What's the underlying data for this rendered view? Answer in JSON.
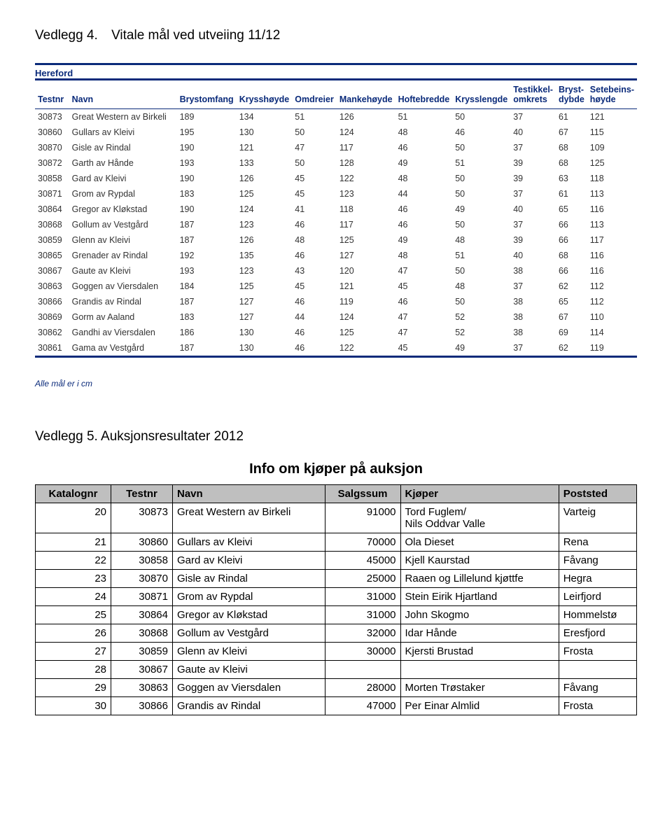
{
  "appendix4": {
    "label": "Vedlegg 4.",
    "title": "Vitale mål ved utveiing 11/12"
  },
  "vitals": {
    "breed": "Hereford",
    "columns": [
      "Testnr",
      "Navn",
      "Brystomfang",
      "Krysshøyde",
      "Omdreier",
      "Mankehøyde",
      "Hoftebredde",
      "Krysslengde",
      "Testikkel-\nomkrets",
      "Bryst-\ndybde",
      "Setebeins-\nhøyde"
    ],
    "rows": [
      {
        "testnr": "30873",
        "navn": "Great Western av Birkeli",
        "v": [
          189,
          134,
          51,
          126,
          51,
          50,
          37,
          61,
          121
        ]
      },
      {
        "testnr": "30860",
        "navn": "Gullars av Kleivi",
        "v": [
          195,
          130,
          50,
          124,
          48,
          46,
          40,
          67,
          115
        ]
      },
      {
        "testnr": "30870",
        "navn": "Gisle av Rindal",
        "v": [
          190,
          121,
          47,
          117,
          46,
          50,
          37,
          68,
          109
        ]
      },
      {
        "testnr": "30872",
        "navn": "Garth av Hånde",
        "v": [
          193,
          133,
          50,
          128,
          49,
          51,
          39,
          68,
          125
        ]
      },
      {
        "testnr": "30858",
        "navn": "Gard av Kleivi",
        "v": [
          190,
          126,
          45,
          122,
          48,
          50,
          39,
          63,
          118
        ]
      },
      {
        "testnr": "30871",
        "navn": "Grom av Rypdal",
        "v": [
          183,
          125,
          45,
          123,
          44,
          50,
          37,
          61,
          113
        ]
      },
      {
        "testnr": "30864",
        "navn": "Gregor av Kløkstad",
        "v": [
          190,
          124,
          41,
          118,
          46,
          49,
          40,
          65,
          116
        ]
      },
      {
        "testnr": "30868",
        "navn": "Gollum av Vestgård",
        "v": [
          187,
          123,
          46,
          117,
          46,
          50,
          37,
          66,
          113
        ]
      },
      {
        "testnr": "30859",
        "navn": "Glenn av Kleivi",
        "v": [
          187,
          126,
          48,
          125,
          49,
          48,
          39,
          66,
          117
        ]
      },
      {
        "testnr": "30865",
        "navn": "Grenader av Rindal",
        "v": [
          192,
          135,
          46,
          127,
          48,
          51,
          40,
          68,
          116
        ]
      },
      {
        "testnr": "30867",
        "navn": "Gaute av Kleivi",
        "v": [
          193,
          123,
          43,
          120,
          47,
          50,
          38,
          66,
          116
        ]
      },
      {
        "testnr": "30863",
        "navn": "Goggen av Viersdalen",
        "v": [
          184,
          125,
          45,
          121,
          45,
          48,
          37,
          62,
          112
        ]
      },
      {
        "testnr": "30866",
        "navn": "Grandis av Rindal",
        "v": [
          187,
          127,
          46,
          119,
          46,
          50,
          38,
          65,
          112
        ]
      },
      {
        "testnr": "30869",
        "navn": "Gorm av Aaland",
        "v": [
          183,
          127,
          44,
          124,
          47,
          52,
          38,
          67,
          110
        ]
      },
      {
        "testnr": "30862",
        "navn": "Gandhi av Viersdalen",
        "v": [
          186,
          130,
          46,
          125,
          47,
          52,
          38,
          69,
          114
        ]
      },
      {
        "testnr": "30861",
        "navn": "Gama av Vestgård",
        "v": [
          187,
          130,
          46,
          122,
          45,
          49,
          37,
          62,
          119
        ]
      }
    ],
    "footnote": "Alle mål er i cm"
  },
  "appendix5": {
    "label": "Vedlegg 5.",
    "title": "Auksjonsresultater 2012"
  },
  "auction": {
    "title": "Info om kjøper på auksjon",
    "columns": [
      "Katalognr",
      "Testnr",
      "Navn",
      "Salgssum",
      "Kjøper",
      "Poststed"
    ],
    "rows": [
      {
        "kat": "20",
        "test": "30873",
        "navn": "Great Western av Birkeli",
        "sum": "91000",
        "buyer": "Tord Fuglem/\nNils Oddvar Valle",
        "sted": "Varteig"
      },
      {
        "kat": "21",
        "test": "30860",
        "navn": "Gullars av Kleivi",
        "sum": "70000",
        "buyer": "Ola Dieset",
        "sted": "Rena"
      },
      {
        "kat": "22",
        "test": "30858",
        "navn": "Gard av Kleivi",
        "sum": "45000",
        "buyer": "Kjell Kaurstad",
        "sted": "Fåvang"
      },
      {
        "kat": "23",
        "test": "30870",
        "navn": "Gisle av Rindal",
        "sum": "25000",
        "buyer": "Raaen og Lillelund kjøttfe",
        "sted": "Hegra"
      },
      {
        "kat": "24",
        "test": "30871",
        "navn": "Grom av Rypdal",
        "sum": "31000",
        "buyer": "Stein Eirik Hjartland",
        "sted": "Leirfjord"
      },
      {
        "kat": "25",
        "test": "30864",
        "navn": "Gregor av Kløkstad",
        "sum": "31000",
        "buyer": "John Skogmo",
        "sted": "Hommelstø"
      },
      {
        "kat": "26",
        "test": "30868",
        "navn": "Gollum av Vestgård",
        "sum": "32000",
        "buyer": "Idar Hånde",
        "sted": "Eresfjord"
      },
      {
        "kat": "27",
        "test": "30859",
        "navn": "Glenn av Kleivi",
        "sum": "30000",
        "buyer": "Kjersti Brustad",
        "sted": "Frosta"
      },
      {
        "kat": "28",
        "test": "30867",
        "navn": "Gaute av Kleivi",
        "sum": "",
        "buyer": "",
        "sted": ""
      },
      {
        "kat": "29",
        "test": "30863",
        "navn": "Goggen av Viersdalen",
        "sum": "28000",
        "buyer": "Morten Trøstaker",
        "sted": "Fåvang"
      },
      {
        "kat": "30",
        "test": "30866",
        "navn": "Grandis av Rindal",
        "sum": "47000",
        "buyer": "Per Einar Almlid",
        "sted": "Frosta"
      }
    ]
  }
}
